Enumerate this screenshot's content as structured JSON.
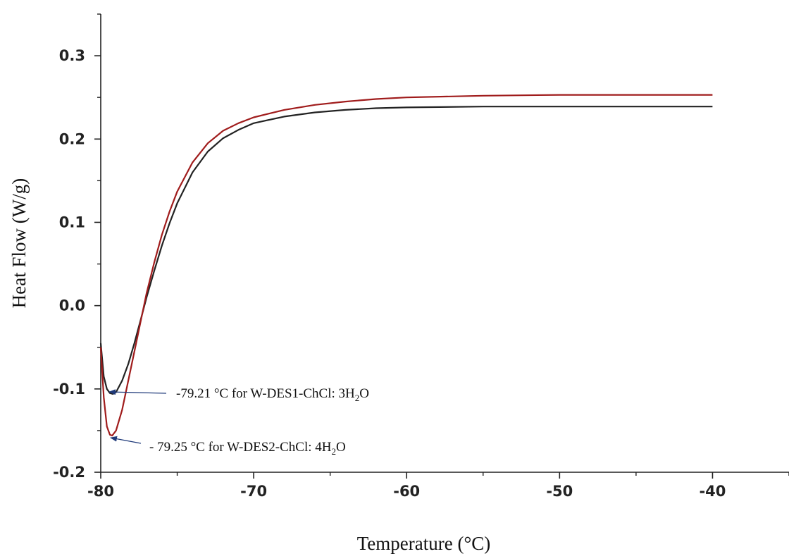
{
  "chart_data": {
    "type": "line",
    "xlabel": "Temperature (°C)",
    "ylabel": "Heat Flow (W/g)",
    "xlim": [
      -80,
      -35
    ],
    "ylim": [
      -0.2,
      0.35
    ],
    "x_ticks": [
      -80,
      -70,
      -60,
      -50,
      -40
    ],
    "x_tick_labels": [
      "-80",
      "-70",
      "-60",
      "-50",
      "-40"
    ],
    "y_ticks": [
      -0.2,
      -0.1,
      0.0,
      0.1,
      0.2,
      0.3
    ],
    "y_tick_labels": [
      "-0.2",
      "-0.1",
      "0.0",
      "0.1",
      "0.2",
      "0.3"
    ],
    "grid": false,
    "series": [
      {
        "color": "#222222",
        "x": [
          -80.0,
          -79.8,
          -79.6,
          -79.4,
          -79.21,
          -79.0,
          -78.6,
          -78.2,
          -77.8,
          -77.4,
          -77.0,
          -76.5,
          -76.0,
          -75.5,
          -75.0,
          -74.0,
          -73.0,
          -72.0,
          -71.0,
          -70.0,
          -68.0,
          -66.0,
          -64.0,
          -62.0,
          -60.0,
          -55.0,
          -50.0,
          -45.0,
          -40.0
        ],
        "y": [
          -0.045,
          -0.085,
          -0.1,
          -0.105,
          -0.106,
          -0.104,
          -0.09,
          -0.07,
          -0.045,
          -0.018,
          0.01,
          0.042,
          0.072,
          0.099,
          0.123,
          0.16,
          0.185,
          0.201,
          0.211,
          0.219,
          0.227,
          0.232,
          0.235,
          0.237,
          0.238,
          0.239,
          0.239,
          0.239,
          0.239
        ]
      },
      {
        "color": "#a01c1c",
        "x": [
          -80.0,
          -79.8,
          -79.6,
          -79.4,
          -79.25,
          -79.0,
          -78.6,
          -78.2,
          -77.8,
          -77.4,
          -77.0,
          -76.5,
          -76.0,
          -75.5,
          -75.0,
          -74.0,
          -73.0,
          -72.0,
          -71.0,
          -70.0,
          -68.0,
          -66.0,
          -64.0,
          -62.0,
          -60.0,
          -55.0,
          -50.0,
          -45.0,
          -40.0
        ],
        "y": [
          -0.05,
          -0.11,
          -0.145,
          -0.155,
          -0.156,
          -0.15,
          -0.125,
          -0.09,
          -0.055,
          -0.02,
          0.015,
          0.052,
          0.085,
          0.113,
          0.137,
          0.172,
          0.195,
          0.21,
          0.219,
          0.226,
          0.235,
          0.241,
          0.245,
          0.248,
          0.25,
          0.252,
          0.253,
          0.253,
          0.253
        ]
      }
    ],
    "annotations": [
      {
        "text_main": "-79.21 °C for W-DES1-ChCl:  3H",
        "sub": "2",
        "text_end": "O",
        "x": -79.21,
        "y": -0.106
      },
      {
        "text_main": "- 79.25 °C for W-DES2-ChCl:  4H",
        "sub": "2",
        "text_end": "O",
        "x": -79.25,
        "y": -0.156
      }
    ]
  }
}
